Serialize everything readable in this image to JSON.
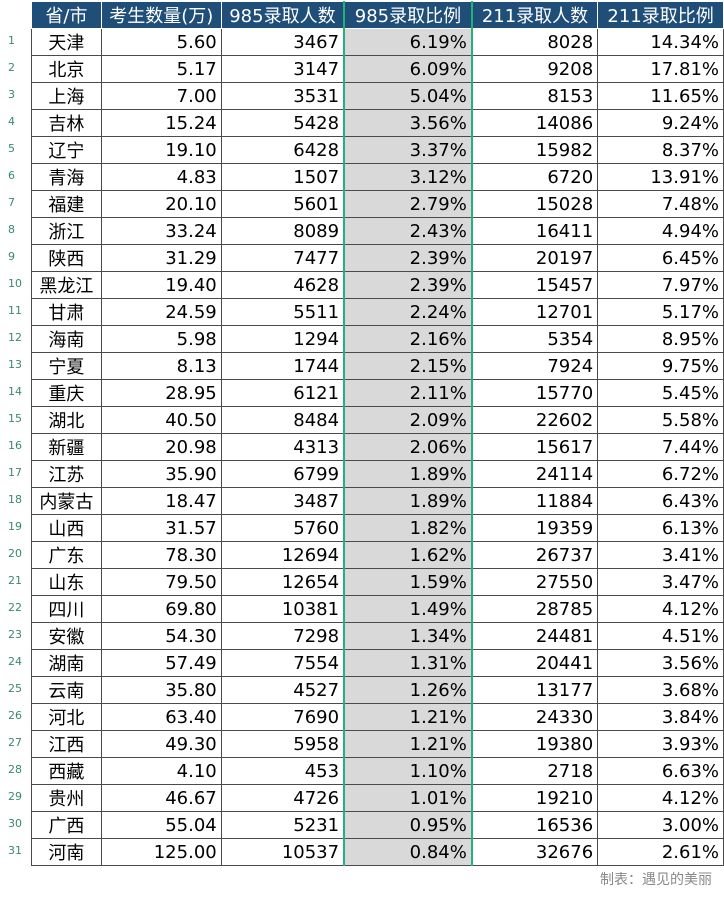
{
  "headers": [
    "省/市",
    "考生数量(万)",
    "985录取人数",
    "985录取比例",
    "211录取人数",
    "211录取比例"
  ],
  "rows": [
    {
      "n": "1",
      "p": "天津",
      "c": "5.60",
      "r985": "3467",
      "p985": "6.19%",
      "r211": "8028",
      "p211": "14.34%"
    },
    {
      "n": "2",
      "p": "北京",
      "c": "5.17",
      "r985": "3147",
      "p985": "6.09%",
      "r211": "9208",
      "p211": "17.81%"
    },
    {
      "n": "3",
      "p": "上海",
      "c": "7.00",
      "r985": "3531",
      "p985": "5.04%",
      "r211": "8153",
      "p211": "11.65%"
    },
    {
      "n": "4",
      "p": "吉林",
      "c": "15.24",
      "r985": "5428",
      "p985": "3.56%",
      "r211": "14086",
      "p211": "9.24%"
    },
    {
      "n": "5",
      "p": "辽宁",
      "c": "19.10",
      "r985": "6428",
      "p985": "3.37%",
      "r211": "15982",
      "p211": "8.37%"
    },
    {
      "n": "6",
      "p": "青海",
      "c": "4.83",
      "r985": "1507",
      "p985": "3.12%",
      "r211": "6720",
      "p211": "13.91%"
    },
    {
      "n": "7",
      "p": "福建",
      "c": "20.10",
      "r985": "5601",
      "p985": "2.79%",
      "r211": "15028",
      "p211": "7.48%"
    },
    {
      "n": "8",
      "p": "浙江",
      "c": "33.24",
      "r985": "8089",
      "p985": "2.43%",
      "r211": "16411",
      "p211": "4.94%"
    },
    {
      "n": "9",
      "p": "陕西",
      "c": "31.29",
      "r985": "7477",
      "p985": "2.39%",
      "r211": "20197",
      "p211": "6.45%"
    },
    {
      "n": "10",
      "p": "黑龙江",
      "c": "19.40",
      "r985": "4628",
      "p985": "2.39%",
      "r211": "15457",
      "p211": "7.97%"
    },
    {
      "n": "11",
      "p": "甘肃",
      "c": "24.59",
      "r985": "5511",
      "p985": "2.24%",
      "r211": "12701",
      "p211": "5.17%"
    },
    {
      "n": "12",
      "p": "海南",
      "c": "5.98",
      "r985": "1294",
      "p985": "2.16%",
      "r211": "5354",
      "p211": "8.95%"
    },
    {
      "n": "13",
      "p": "宁夏",
      "c": "8.13",
      "r985": "1744",
      "p985": "2.15%",
      "r211": "7924",
      "p211": "9.75%"
    },
    {
      "n": "14",
      "p": "重庆",
      "c": "28.95",
      "r985": "6121",
      "p985": "2.11%",
      "r211": "15770",
      "p211": "5.45%"
    },
    {
      "n": "15",
      "p": "湖北",
      "c": "40.50",
      "r985": "8484",
      "p985": "2.09%",
      "r211": "22602",
      "p211": "5.58%"
    },
    {
      "n": "16",
      "p": "新疆",
      "c": "20.98",
      "r985": "4313",
      "p985": "2.06%",
      "r211": "15617",
      "p211": "7.44%"
    },
    {
      "n": "17",
      "p": "江苏",
      "c": "35.90",
      "r985": "6799",
      "p985": "1.89%",
      "r211": "24114",
      "p211": "6.72%"
    },
    {
      "n": "18",
      "p": "内蒙古",
      "c": "18.47",
      "r985": "3487",
      "p985": "1.89%",
      "r211": "11884",
      "p211": "6.43%"
    },
    {
      "n": "19",
      "p": "山西",
      "c": "31.57",
      "r985": "5760",
      "p985": "1.82%",
      "r211": "19359",
      "p211": "6.13%"
    },
    {
      "n": "20",
      "p": "广东",
      "c": "78.30",
      "r985": "12694",
      "p985": "1.62%",
      "r211": "26737",
      "p211": "3.41%"
    },
    {
      "n": "21",
      "p": "山东",
      "c": "79.50",
      "r985": "12654",
      "p985": "1.59%",
      "r211": "27550",
      "p211": "3.47%"
    },
    {
      "n": "22",
      "p": "四川",
      "c": "69.80",
      "r985": "10381",
      "p985": "1.49%",
      "r211": "28785",
      "p211": "4.12%"
    },
    {
      "n": "23",
      "p": "安徽",
      "c": "54.30",
      "r985": "7298",
      "p985": "1.34%",
      "r211": "24481",
      "p211": "4.51%"
    },
    {
      "n": "24",
      "p": "湖南",
      "c": "57.49",
      "r985": "7554",
      "p985": "1.31%",
      "r211": "20441",
      "p211": "3.56%"
    },
    {
      "n": "25",
      "p": "云南",
      "c": "35.80",
      "r985": "4527",
      "p985": "1.26%",
      "r211": "13177",
      "p211": "3.68%"
    },
    {
      "n": "26",
      "p": "河北",
      "c": "63.40",
      "r985": "7690",
      "p985": "1.21%",
      "r211": "24330",
      "p211": "3.84%"
    },
    {
      "n": "27",
      "p": "江西",
      "c": "49.30",
      "r985": "5958",
      "p985": "1.21%",
      "r211": "19380",
      "p211": "3.93%"
    },
    {
      "n": "28",
      "p": "西藏",
      "c": "4.10",
      "r985": "453",
      "p985": "1.10%",
      "r211": "2718",
      "p211": "6.63%"
    },
    {
      "n": "29",
      "p": "贵州",
      "c": "46.67",
      "r985": "4726",
      "p985": "1.01%",
      "r211": "19210",
      "p211": "4.12%"
    },
    {
      "n": "30",
      "p": "广西",
      "c": "55.04",
      "r985": "5231",
      "p985": "0.95%",
      "r211": "16536",
      "p211": "3.00%"
    },
    {
      "n": "31",
      "p": "河南",
      "c": "125.00",
      "r985": "10537",
      "p985": "0.84%",
      "r211": "32676",
      "p211": "2.61%"
    }
  ],
  "footer": "制表：遇见的美丽",
  "colors": {
    "header_bg": "#1f4e79",
    "header_text": "#ffffff",
    "shade": "#d9d9d9",
    "accent_border": "#24b07a"
  }
}
